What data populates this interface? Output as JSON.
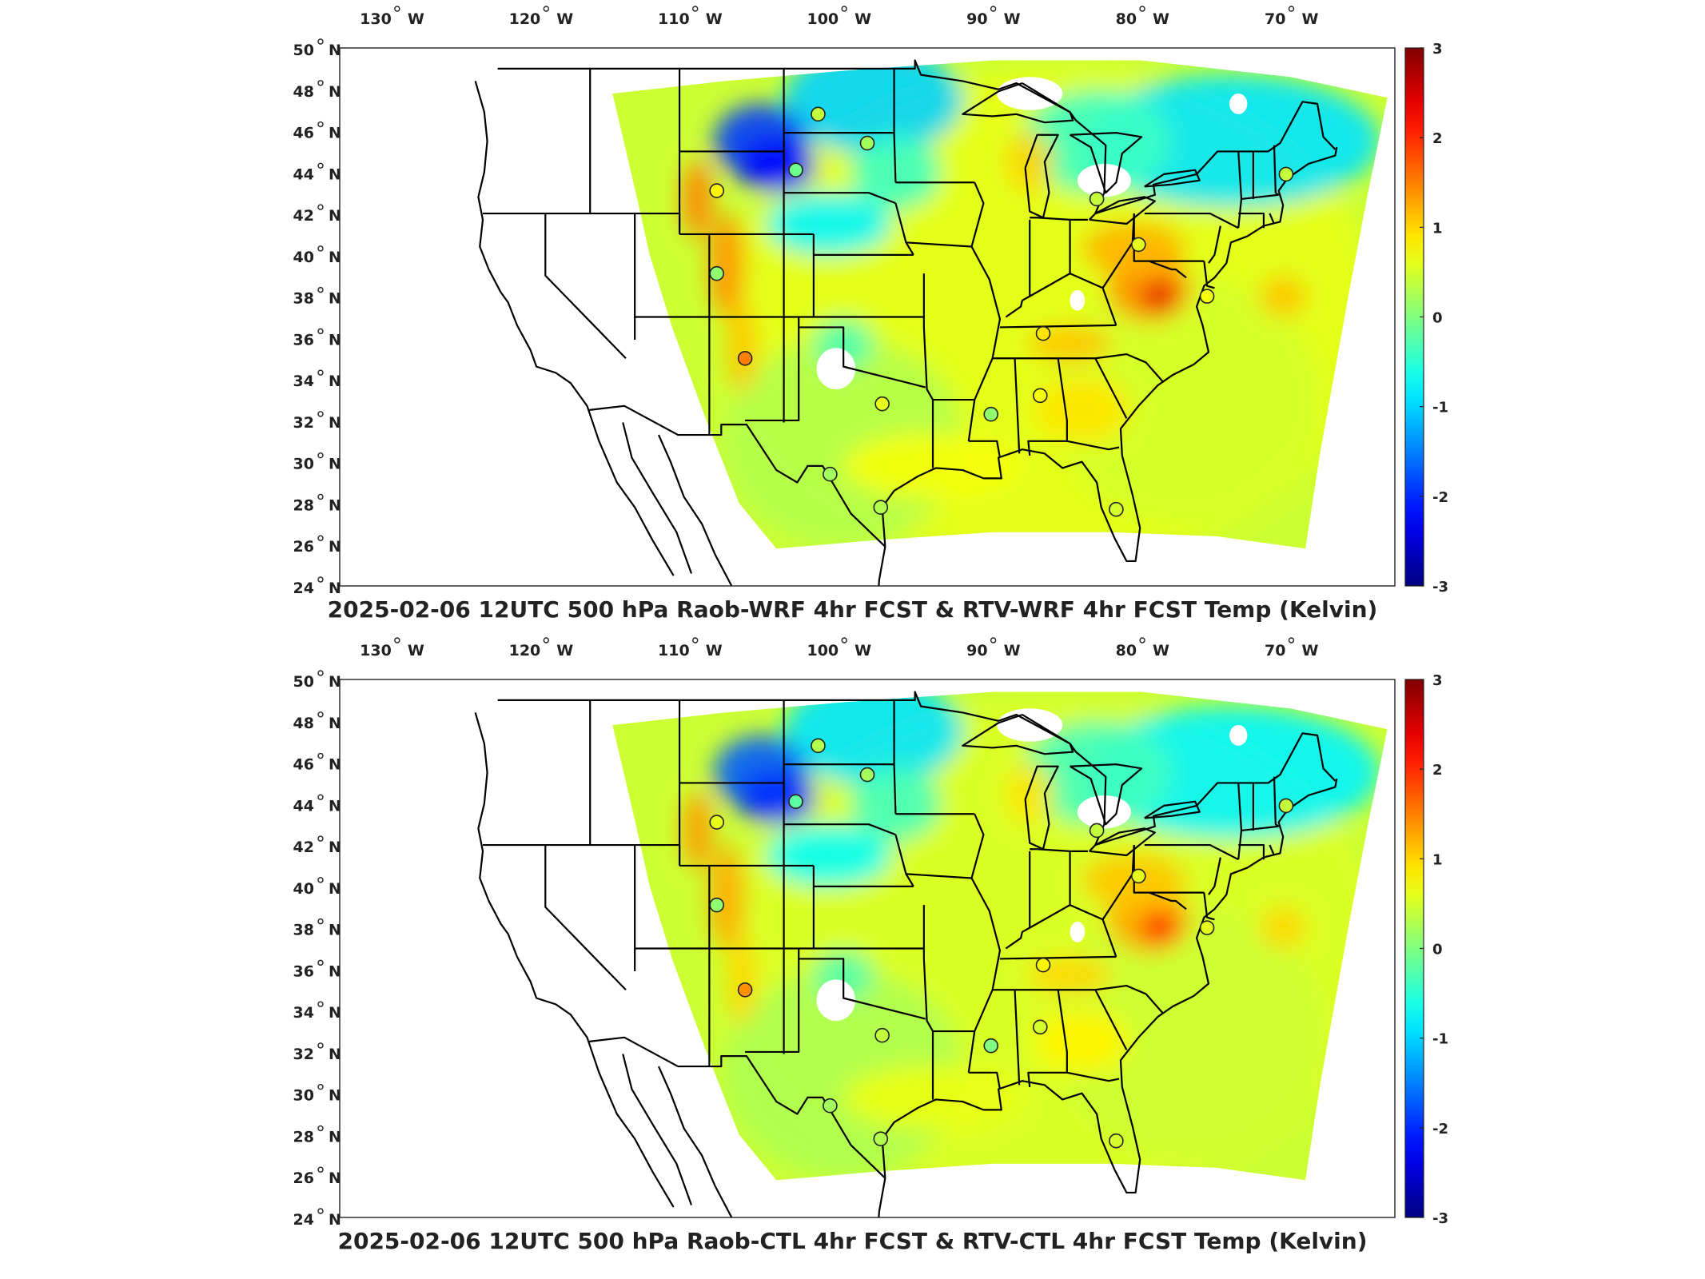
{
  "panels": [
    {
      "id": "top",
      "title": "2025-02-06 12UTC 500 hPa Raob-WRF 4hr FCST & RTV-WRF 4hr FCST Temp (Kelvin)"
    },
    {
      "id": "bottom",
      "title": "2025-02-06 12UTC 500 hPa Raob-CTL 4hr FCST & RTV-CTL 4hr FCST Temp (Kelvin)"
    }
  ],
  "axes": {
    "lon_ticks": [
      {
        "value": -130,
        "deg": "130",
        "hem": "W"
      },
      {
        "value": -120,
        "deg": "120",
        "hem": "W"
      },
      {
        "value": -110,
        "deg": "110",
        "hem": "W"
      },
      {
        "value": -100,
        "deg": "100",
        "hem": "W"
      },
      {
        "value": -90,
        "deg": "90",
        "hem": "W"
      },
      {
        "value": -80,
        "deg": "80",
        "hem": "W"
      },
      {
        "value": -70,
        "deg": "70",
        "hem": "W"
      }
    ],
    "lat_ticks": [
      {
        "value": 50,
        "deg": "50",
        "hem": "N"
      },
      {
        "value": 48,
        "deg": "48",
        "hem": "N"
      },
      {
        "value": 46,
        "deg": "46",
        "hem": "N"
      },
      {
        "value": 44,
        "deg": "44",
        "hem": "N"
      },
      {
        "value": 42,
        "deg": "42",
        "hem": "N"
      },
      {
        "value": 40,
        "deg": "40",
        "hem": "N"
      },
      {
        "value": 38,
        "deg": "38",
        "hem": "N"
      },
      {
        "value": 36,
        "deg": "36",
        "hem": "N"
      },
      {
        "value": 34,
        "deg": "34",
        "hem": "N"
      },
      {
        "value": 32,
        "deg": "32",
        "hem": "N"
      },
      {
        "value": 30,
        "deg": "30",
        "hem": "N"
      },
      {
        "value": 28,
        "deg": "28",
        "hem": "N"
      },
      {
        "value": 26,
        "deg": "26",
        "hem": "N"
      },
      {
        "value": 24,
        "deg": "24",
        "hem": "N"
      }
    ]
  },
  "colorbar": {
    "min": -3,
    "max": 3,
    "labels": [
      "3",
      "2",
      "1",
      "0",
      "-1",
      "-2",
      "-3"
    ],
    "colormap": "jet"
  },
  "colors": {
    "jet_dark_blue": "#00008f",
    "jet_cyan": "#00ffff",
    "jet_yellow": "#ffff00",
    "jet_dark_red": "#800000",
    "coastline": "#000000"
  },
  "raob_stations": [
    {
      "lon": -101.7,
      "lat": 46.8,
      "top": 0.4,
      "bottom": 0.3
    },
    {
      "lon": -98.4,
      "lat": 45.4,
      "top": 0.2,
      "bottom": 0.2
    },
    {
      "lon": -103.2,
      "lat": 44.1,
      "top": -0.1,
      "bottom": -0.2
    },
    {
      "lon": -108.5,
      "lat": 43.1,
      "top": 0.8,
      "bottom": 0.6
    },
    {
      "lon": -108.5,
      "lat": 39.1,
      "top": 0.1,
      "bottom": 0.1
    },
    {
      "lon": -106.6,
      "lat": 35.0,
      "top": 1.5,
      "bottom": 1.4
    },
    {
      "lon": -97.4,
      "lat": 32.8,
      "top": 0.6,
      "bottom": 0.4
    },
    {
      "lon": -100.9,
      "lat": 29.4,
      "top": 0.2,
      "bottom": 0.2
    },
    {
      "lon": -97.5,
      "lat": 27.8,
      "top": 0.3,
      "bottom": 0.3
    },
    {
      "lon": -90.1,
      "lat": 32.3,
      "top": 0.1,
      "bottom": 0.0
    },
    {
      "lon": -86.8,
      "lat": 33.2,
      "top": 0.7,
      "bottom": 0.5
    },
    {
      "lon": -86.6,
      "lat": 36.2,
      "top": 0.9,
      "bottom": 0.8
    },
    {
      "lon": -83.0,
      "lat": 42.7,
      "top": 0.4,
      "bottom": 0.4
    },
    {
      "lon": -80.2,
      "lat": 40.5,
      "top": 0.6,
      "bottom": 0.6
    },
    {
      "lon": -81.7,
      "lat": 27.7,
      "top": 0.5,
      "bottom": 0.5
    },
    {
      "lon": -70.3,
      "lat": 43.9,
      "top": 0.4,
      "bottom": 0.4
    },
    {
      "lon": -75.6,
      "lat": 38.0,
      "top": 0.7,
      "bottom": 0.6
    }
  ]
}
